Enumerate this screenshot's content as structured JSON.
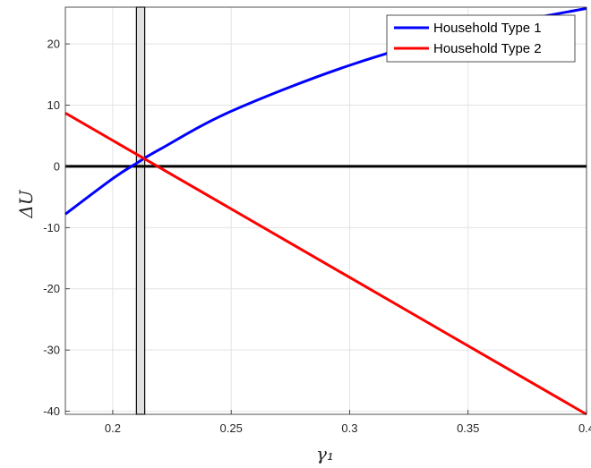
{
  "chart_data": {
    "type": "line",
    "title": "",
    "xlabel": "γ₁",
    "ylabel": "ΔU",
    "xlim": [
      0.18,
      0.4
    ],
    "ylim": [
      -40.5,
      26
    ],
    "x_ticks": [
      0.2,
      0.25,
      0.3,
      0.35,
      0.4
    ],
    "x_tick_labels": [
      "0.2",
      "0.25",
      "0.3",
      "0.35",
      "0.4"
    ],
    "y_ticks": [
      -40,
      -30,
      -20,
      -10,
      0,
      10,
      20
    ],
    "y_tick_labels": [
      "-40",
      "-30",
      "-20",
      "-10",
      "0",
      "10",
      "20"
    ],
    "grid": true,
    "legend_position": "top-right",
    "series": [
      {
        "name": "Household Type 1",
        "color": "#0000ff",
        "x": [
          0.18,
          0.2,
          0.21,
          0.22,
          0.25,
          0.3,
          0.35,
          0.4
        ],
        "y": [
          -7.8,
          -2.0,
          0.5,
          2.8,
          9.0,
          16.5,
          22.0,
          25.8
        ]
      },
      {
        "name": "Household Type 2",
        "color": "#ff0000",
        "x": [
          0.18,
          0.4
        ],
        "y": [
          8.7,
          -40.5
        ]
      }
    ],
    "reference_lines": [
      {
        "axis": "y",
        "value": 0,
        "color": "#000000"
      }
    ],
    "shaded_band": {
      "x_range": [
        0.21,
        0.2135
      ],
      "fill": "#e0e0e0",
      "stroke": "#000000"
    }
  }
}
